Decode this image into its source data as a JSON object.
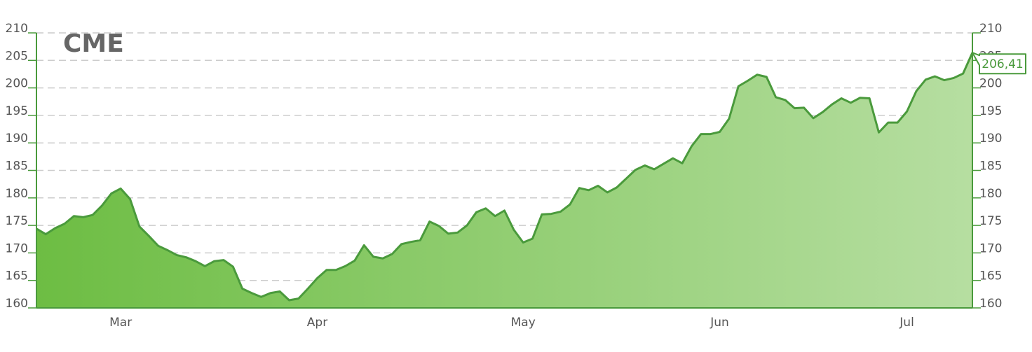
{
  "chart_data": {
    "type": "area",
    "title": "CME",
    "categories": [
      null,
      null,
      null,
      null,
      null,
      null,
      null,
      null,
      null,
      "Mar",
      null,
      null,
      null,
      null,
      null,
      null,
      null,
      null,
      null,
      null,
      null,
      null,
      null,
      null,
      null,
      null,
      null,
      null,
      null,
      null,
      "Apr",
      null,
      null,
      null,
      null,
      null,
      null,
      null,
      null,
      null,
      null,
      null,
      null,
      null,
      null,
      null,
      null,
      null,
      null,
      null,
      null,
      null,
      "May",
      null,
      null,
      null,
      null,
      null,
      null,
      null,
      null,
      null,
      null,
      null,
      null,
      null,
      null,
      null,
      null,
      null,
      null,
      null,
      null,
      "Jun",
      null,
      null,
      null,
      null,
      null,
      null,
      null,
      null,
      null,
      null,
      null,
      null,
      null,
      null,
      null,
      null,
      null,
      null,
      null,
      "Jul",
      null,
      null,
      null,
      null,
      null,
      null,
      null
    ],
    "series": [
      {
        "name": "CME",
        "color": "#4a9a3c",
        "values": [
          174.4,
          173.4,
          174.5,
          175.3,
          176.7,
          176.5,
          176.9,
          178.6,
          180.8,
          181.7,
          179.8,
          174.8,
          173.1,
          171.3,
          170.5,
          169.6,
          169.2,
          168.5,
          167.6,
          168.5,
          168.7,
          167.5,
          163.5,
          162.7,
          162.0,
          162.7,
          163.0,
          161.4,
          161.7,
          163.5,
          165.4,
          166.9,
          166.9,
          167.6,
          168.6,
          171.4,
          169.3,
          169.0,
          169.8,
          171.6,
          172.0,
          172.3,
          175.7,
          174.9,
          173.5,
          173.7,
          175.0,
          177.4,
          178.1,
          176.7,
          177.7,
          174.2,
          171.9,
          172.6,
          177.0,
          177.1,
          177.5,
          178.8,
          181.8,
          181.4,
          182.2,
          181.0,
          181.9,
          183.5,
          185.1,
          185.9,
          185.2,
          186.2,
          187.2,
          186.3,
          189.4,
          191.6,
          191.6,
          192.0,
          194.4,
          200.3,
          201.3,
          202.4,
          202.0,
          198.3,
          197.8,
          196.3,
          196.4,
          194.5,
          195.6,
          197.0,
          198.1,
          197.3,
          198.2,
          198.1,
          191.9,
          193.7,
          193.7,
          195.7,
          199.4,
          201.5,
          202.1,
          201.4,
          201.8,
          202.6,
          206.41
        ],
        "value_labels": [
          null,
          null,
          null,
          null,
          null,
          null,
          null,
          null,
          null,
          null,
          null,
          null,
          null,
          null,
          null,
          null,
          null,
          null,
          null,
          null,
          null,
          null,
          null,
          null,
          null,
          null,
          null,
          null,
          null,
          null,
          null,
          null,
          null,
          null,
          null,
          null,
          null,
          null,
          null,
          null,
          null,
          null,
          null,
          null,
          null,
          null,
          null,
          null,
          null,
          null,
          null,
          null,
          null,
          null,
          null,
          null,
          null,
          null,
          null,
          null,
          null,
          null,
          null,
          null,
          null,
          null,
          null,
          null,
          null,
          null,
          null,
          null,
          null,
          null,
          null,
          null,
          null,
          null,
          null,
          null,
          null,
          null,
          null,
          null,
          null,
          null,
          null,
          null,
          null,
          null,
          null,
          null,
          null,
          null,
          null,
          null,
          null,
          null,
          null,
          null,
          "206,41"
        ]
      }
    ],
    "ylim": [
      160,
      210
    ],
    "yticks": [
      160,
      165,
      170,
      175,
      180,
      185,
      190,
      195,
      200,
      205,
      210
    ],
    "y2lim": [
      160,
      210
    ],
    "y2ticks": [
      160,
      165,
      170,
      175,
      180,
      185,
      190,
      195,
      200,
      205,
      210
    ],
    "grid": true
  }
}
